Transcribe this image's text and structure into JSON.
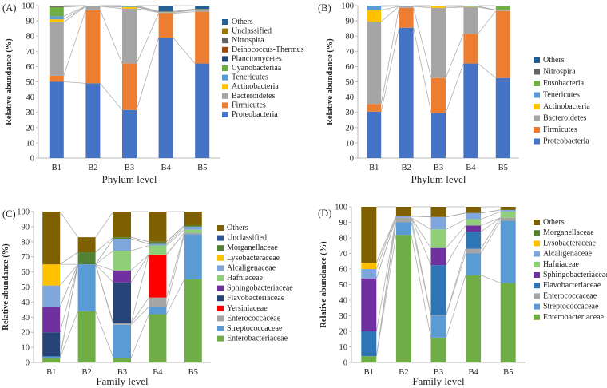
{
  "chart_data": [
    {
      "type": "bar",
      "stacked": true,
      "panel_label": "(A)",
      "xlabel": "Phylum level",
      "ylabel": "Relative abundance (%)",
      "ylim": [
        0,
        100
      ],
      "yticks": [
        0,
        10,
        20,
        30,
        40,
        50,
        60,
        70,
        80,
        90,
        100
      ],
      "categories": [
        "B1",
        "B2",
        "B3",
        "B4",
        "B5"
      ],
      "series": [
        {
          "name": "Proteobacteria",
          "color": "#4472c4",
          "values": [
            50,
            49,
            31.5,
            79,
            62
          ]
        },
        {
          "name": "Firmicutes",
          "color": "#ed7d31",
          "values": [
            4,
            48,
            30.5,
            16,
            34
          ]
        },
        {
          "name": "Bacteroidetes",
          "color": "#a5a5a5",
          "values": [
            35,
            2.5,
            36,
            0.5,
            1
          ]
        },
        {
          "name": "Actinobacteria",
          "color": "#ffc000",
          "values": [
            2,
            0.1,
            1,
            0.1,
            0.1
          ]
        },
        {
          "name": "Tenericutes",
          "color": "#5b9bd5",
          "values": [
            2,
            0.1,
            0.3,
            0.1,
            0.1
          ]
        },
        {
          "name": "Cyanobacteriaa",
          "color": "#70ad47",
          "values": [
            6,
            0.1,
            0.3,
            0.1,
            0.2
          ]
        },
        {
          "name": "Planctomycetes",
          "color": "#264478",
          "values": [
            0.3,
            0.1,
            0.1,
            0.1,
            0.1
          ]
        },
        {
          "name": "Deinococcus-Thermus",
          "color": "#9e480e",
          "values": [
            0.2,
            0.1,
            0.1,
            0.1,
            0.1
          ]
        },
        {
          "name": "Nitrospira",
          "color": "#636363",
          "values": [
            0.2,
            0.1,
            0.1,
            0.1,
            0.1
          ]
        },
        {
          "name": "Unclassified",
          "color": "#997300",
          "values": [
            0.2,
            0.1,
            0.1,
            0.1,
            0.1
          ]
        },
        {
          "name": "Others",
          "color": "#255e91",
          "values": [
            0.1,
            0.1,
            0.1,
            4,
            2.1
          ]
        }
      ]
    },
    {
      "type": "bar",
      "stacked": true,
      "panel_label": "(B)",
      "xlabel": "Phylum level",
      "ylabel": "Relative abundance (%)",
      "ylim": [
        0,
        100
      ],
      "yticks": [
        0,
        10,
        20,
        30,
        40,
        50,
        60,
        70,
        80,
        90,
        100
      ],
      "categories": [
        "B1",
        "B2",
        "B3",
        "B4",
        "B5"
      ],
      "series": [
        {
          "name": "Proteobacteria",
          "color": "#4472c4",
          "values": [
            30.5,
            85.5,
            29.5,
            62,
            52.5
          ]
        },
        {
          "name": "Firmicutes",
          "color": "#ed7d31",
          "values": [
            5,
            13,
            23,
            19.5,
            44
          ]
        },
        {
          "name": "Bacteroidetes",
          "color": "#a5a5a5",
          "values": [
            54,
            1,
            46,
            17.5,
            0.5
          ]
        },
        {
          "name": "Actinobacteria",
          "color": "#ffc000",
          "values": [
            7.5,
            0.1,
            1,
            0.3,
            0.1
          ]
        },
        {
          "name": "Tenericutes",
          "color": "#5b9bd5",
          "values": [
            2.5,
            0.1,
            0.1,
            0.2,
            0.1
          ]
        },
        {
          "name": "Fusobacteria",
          "color": "#70ad47",
          "values": [
            0.1,
            0.1,
            0.1,
            0.1,
            2.5
          ]
        },
        {
          "name": "Nitrospira",
          "color": "#636363",
          "values": [
            0.1,
            0.1,
            0.1,
            0.1,
            0.1
          ]
        },
        {
          "name": "Others",
          "color": "#255e91",
          "values": [
            0.3,
            0.1,
            0.2,
            0.3,
            0.2
          ]
        }
      ]
    },
    {
      "type": "bar",
      "stacked": true,
      "panel_label": "(C)",
      "xlabel": "Family level",
      "ylabel": "Relative abundance (%)",
      "ylim": [
        0,
        100
      ],
      "yticks": [
        0,
        10,
        20,
        30,
        40,
        50,
        60,
        70,
        80,
        90,
        100
      ],
      "categories": [
        "B1",
        "B2",
        "B3",
        "B4",
        "B5"
      ],
      "series": [
        {
          "name": "Enterobacteriaceae",
          "color": "#70ad47",
          "values": [
            3,
            34,
            3,
            32,
            55
          ]
        },
        {
          "name": "Streptococcaceae",
          "color": "#5b9bd5",
          "values": [
            1,
            31,
            22,
            5,
            30
          ]
        },
        {
          "name": "Enterococcaceae",
          "color": "#a5a5a5",
          "values": [
            0,
            0,
            1,
            6,
            1
          ]
        },
        {
          "name": "Yersiniaceae",
          "color": "#ff0000",
          "values": [
            0,
            0,
            0,
            28.5,
            0
          ]
        },
        {
          "name": "Flavobacteriaceae",
          "color": "#264478",
          "values": [
            16,
            0,
            27,
            0,
            0
          ]
        },
        {
          "name": "Sphingobacteriaceae",
          "color": "#7030a0",
          "values": [
            17,
            0,
            8,
            0,
            0
          ]
        },
        {
          "name": "Hafniaceae",
          "color": "#8fcf78",
          "values": [
            0,
            0,
            13,
            6,
            2
          ]
        },
        {
          "name": "Alcaligenaceae",
          "color": "#7fa7dc",
          "values": [
            14,
            0,
            8,
            1,
            2
          ]
        },
        {
          "name": "Lysobacteraceae",
          "color": "#ffc000",
          "values": [
            14,
            0,
            0,
            0,
            0
          ]
        },
        {
          "name": "Morganellaceae",
          "color": "#548235",
          "values": [
            0,
            8,
            1,
            1.5,
            1
          ]
        },
        {
          "name": "Unclassified",
          "color": "#2f5597",
          "values": [
            0,
            0,
            0,
            0,
            0
          ]
        },
        {
          "name": "Others",
          "color": "#7f6000",
          "values": [
            35,
            10,
            17,
            20,
            9
          ]
        }
      ]
    },
    {
      "type": "bar",
      "stacked": true,
      "panel_label": "(D)",
      "xlabel": "Family level",
      "ylabel": "Relative abundance (%)",
      "ylim": [
        0,
        100
      ],
      "yticks": [
        0,
        10,
        20,
        30,
        40,
        50,
        60,
        70,
        80,
        90,
        100
      ],
      "categories": [
        "B1",
        "B2",
        "B3",
        "B4",
        "B5"
      ],
      "series": [
        {
          "name": "Enterobacteriaceae",
          "color": "#70ad47",
          "values": [
            4,
            82,
            16,
            56,
            51
          ]
        },
        {
          "name": "Streptococcaceae",
          "color": "#5b9bd5",
          "values": [
            0,
            8,
            14,
            14,
            40
          ]
        },
        {
          "name": "Enterococcaceae",
          "color": "#a5a5a5",
          "values": [
            0,
            3,
            0.5,
            3,
            2
          ]
        },
        {
          "name": "Flavobacteriaceae",
          "color": "#2e75b6",
          "values": [
            16,
            0,
            32,
            11,
            0
          ]
        },
        {
          "name": "Sphingobacteriaceae",
          "color": "#7030a0",
          "values": [
            34,
            0,
            11,
            4,
            0
          ]
        },
        {
          "name": "Hafniaceae",
          "color": "#8fcf78",
          "values": [
            0,
            0,
            12,
            4,
            4
          ]
        },
        {
          "name": "Alcaligenaceae",
          "color": "#7fa7dc",
          "values": [
            6,
            1,
            8,
            4,
            1
          ]
        },
        {
          "name": "Lysobacteraceae",
          "color": "#ffc000",
          "values": [
            4,
            0,
            0,
            0,
            0
          ]
        },
        {
          "name": "Morganellaceae",
          "color": "#548235",
          "values": [
            0,
            0,
            0,
            0,
            0
          ]
        },
        {
          "name": "Others",
          "color": "#7f6000",
          "values": [
            36,
            6,
            6.5,
            4,
            2
          ]
        }
      ]
    }
  ]
}
